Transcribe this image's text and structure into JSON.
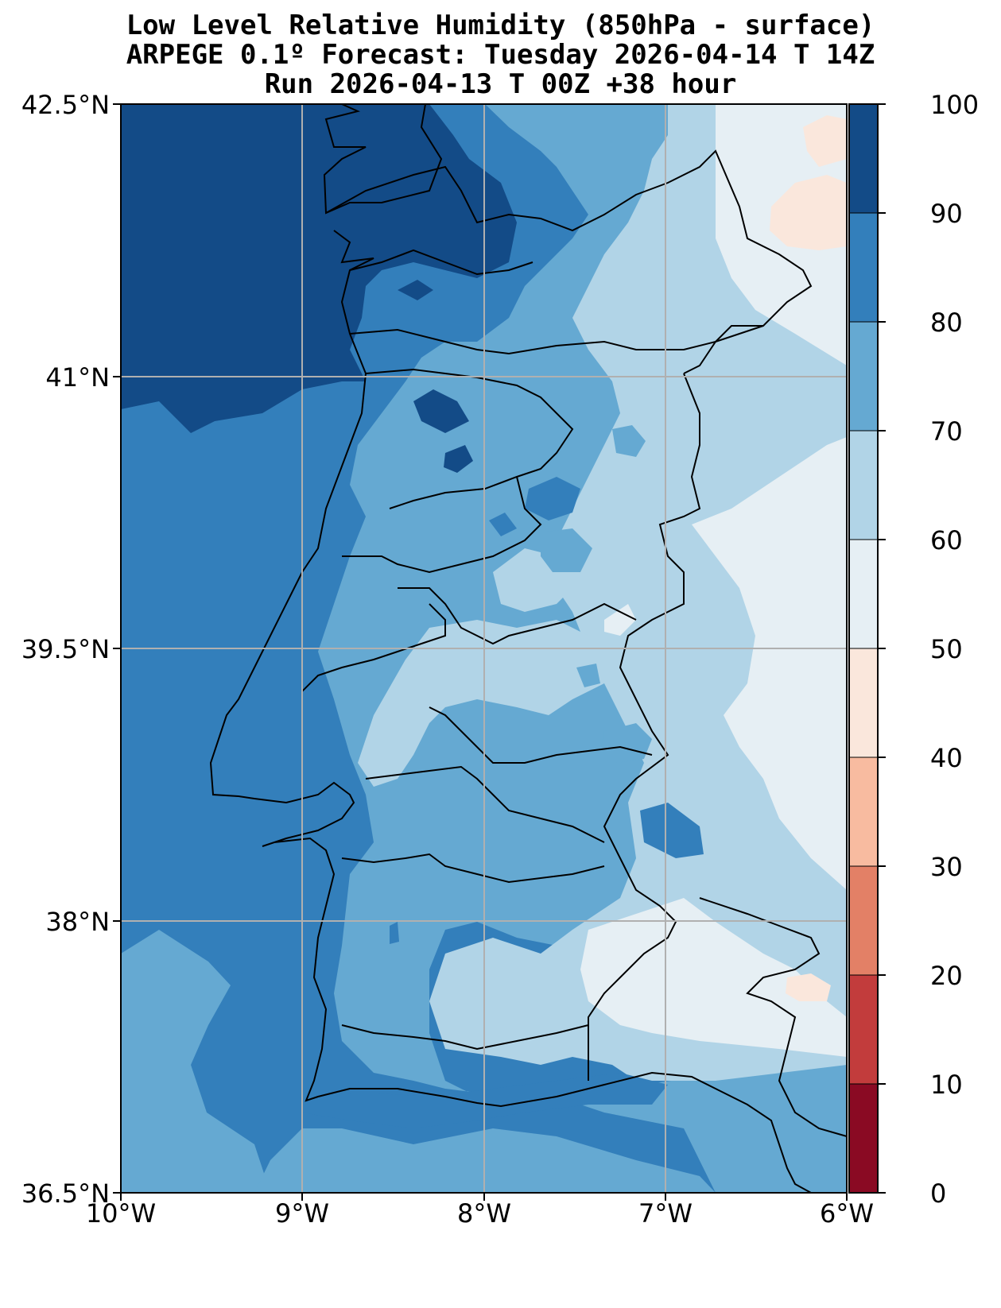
{
  "title": {
    "line1": "Low Level Relative Humidity (850hPa - surface)",
    "line2": "ARPEGE 0.1º Forecast: Tuesday 2026-04-14 T 14Z",
    "line3": "Run 2026-04-13 T 00Z +38 hour"
  },
  "axes": {
    "lat_labels": [
      "42.5°N",
      "41°N",
      "39.5°N",
      "38°N",
      "36.5°N"
    ],
    "lon_labels": [
      "10°W",
      "9°W",
      "8°W",
      "7°W",
      "6°W"
    ]
  },
  "colorbar": {
    "labels": [
      "100",
      "90",
      "80",
      "70",
      "60",
      "50",
      "40",
      "30",
      "20",
      "10",
      "0"
    ],
    "colors": [
      "#134b87",
      "#337fbb",
      "#65a9d2",
      "#b1d4e7",
      "#e6eff4",
      "#fae7dc",
      "#f8bba0",
      "#e38066",
      "#c23c3c",
      "#8a0a23"
    ]
  },
  "map_colors": {
    "rh_90_100": "#134b87",
    "rh_80_90": "#337fbb",
    "rh_70_80": "#65a9d2",
    "rh_60_70": "#b1d4e7",
    "rh_50_60": "#e6eff4",
    "rh_40_50": "#fae7dc",
    "grid": "#b0b0b0",
    "border": "#000000"
  }
}
